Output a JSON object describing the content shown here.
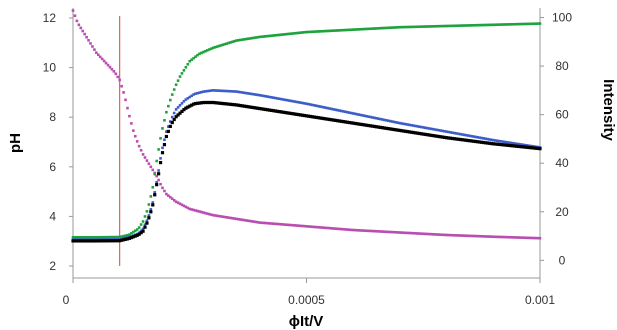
{
  "chart_data": {
    "type": "scatter",
    "xlabel": "ϕIt/V",
    "ylabel": "pH",
    "y2label": "Intensity",
    "xlim": [
      0,
      0.001
    ],
    "ylim": [
      2,
      12
    ],
    "y2lim": [
      -5,
      100
    ],
    "x_ticks": [
      "0",
      "0.0005",
      "0.001"
    ],
    "y_ticks": [
      "2",
      "4",
      "6",
      "8",
      "10",
      "12"
    ],
    "y2_ticks": [
      "0",
      "20",
      "40",
      "60",
      "80",
      "100"
    ],
    "grid": false,
    "legend": "none",
    "vline_x": 0.0001,
    "colors": {
      "magenta": "#b84fb1",
      "green": "#1fa33f",
      "blue": "#3d5ec9",
      "black": "#000000",
      "vline": "#e0413a"
    },
    "series": [
      {
        "axis": "left",
        "color": "magenta",
        "x": [
          0,
          1e-05,
          2e-05,
          3e-05,
          4e-05,
          5e-05,
          6e-05,
          7e-05,
          8e-05,
          9e-05,
          0.0001,
          0.00011,
          0.00012,
          0.00013,
          0.00014,
          0.00015,
          0.00016,
          0.00017,
          0.00018,
          0.00019,
          0.0002,
          0.00022,
          0.00025,
          0.0003,
          0.00035,
          0.0004,
          0.0005,
          0.0006,
          0.0007,
          0.0008,
          0.0009,
          0.001
        ],
        "y": [
          12.3,
          11.8,
          11.5,
          11.2,
          10.9,
          10.6,
          10.4,
          10.2,
          10.0,
          9.8,
          9.5,
          8.9,
          8.1,
          7.4,
          6.9,
          6.5,
          6.2,
          5.9,
          5.6,
          5.2,
          4.9,
          4.6,
          4.3,
          4.05,
          3.9,
          3.75,
          3.6,
          3.45,
          3.35,
          3.25,
          3.18,
          3.12
        ]
      },
      {
        "axis": "right",
        "color": "green",
        "x": [
          0,
          5e-05,
          0.0001,
          0.00012,
          0.00014,
          0.00015,
          0.00016,
          0.00017,
          0.00018,
          0.00019,
          0.0002,
          0.00021,
          0.00022,
          0.00023,
          0.00025,
          0.00027,
          0.0003,
          0.00035,
          0.0004,
          0.0005,
          0.0006,
          0.0007,
          0.0008,
          0.0009,
          0.001
        ],
        "y": [
          9.5,
          9.5,
          9.6,
          10.5,
          13,
          16,
          21,
          29,
          42,
          53,
          61,
          67,
          72,
          76,
          82,
          85,
          87.5,
          90.5,
          92,
          94,
          95,
          96,
          96.5,
          97,
          97.5
        ]
      },
      {
        "axis": "right",
        "color": "blue",
        "x": [
          0,
          5e-05,
          0.0001,
          0.00012,
          0.00014,
          0.00015,
          0.00016,
          0.00017,
          0.00018,
          0.00019,
          0.0002,
          0.00021,
          0.00022,
          0.00024,
          0.00026,
          0.00028,
          0.0003,
          0.00035,
          0.0004,
          0.0005,
          0.0006,
          0.0007,
          0.0008,
          0.0009,
          0.001
        ],
        "y": [
          8.5,
          8.5,
          8.6,
          9.5,
          11,
          13,
          17,
          23,
          33,
          45,
          53,
          58,
          62,
          66,
          68.5,
          69.5,
          70,
          69.5,
          68,
          64.5,
          60.5,
          56.5,
          53,
          49.5,
          46.5
        ]
      },
      {
        "axis": "right",
        "color": "black",
        "x": [
          0,
          5e-05,
          0.0001,
          0.00012,
          0.00014,
          0.00015,
          0.00016,
          0.00017,
          0.00018,
          0.00019,
          0.0002,
          0.00021,
          0.00022,
          0.00024,
          0.00026,
          0.00028,
          0.0003,
          0.00035,
          0.0004,
          0.0005,
          0.0006,
          0.0007,
          0.0008,
          0.0009,
          0.001
        ],
        "y": [
          8,
          8,
          8.1,
          9,
          10.5,
          12,
          16,
          22,
          32,
          43,
          51,
          56,
          59,
          62.5,
          64.5,
          65,
          65,
          64,
          62.5,
          59.5,
          56.5,
          53.5,
          50.5,
          48,
          46
        ]
      }
    ]
  }
}
